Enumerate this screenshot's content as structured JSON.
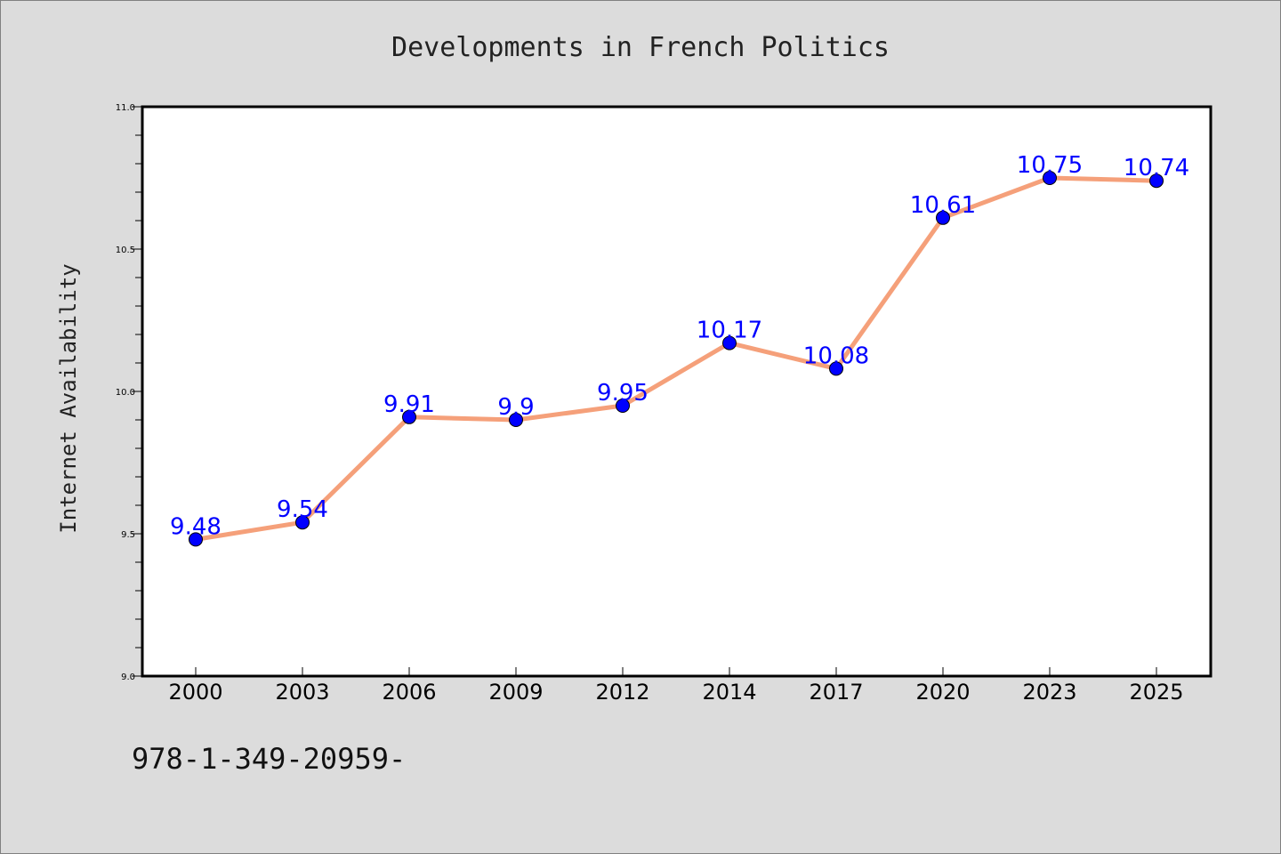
{
  "chart_data": {
    "type": "line",
    "title": "Developments in French Politics",
    "xlabel": "",
    "ylabel": "Internet Availability",
    "categories": [
      "2000",
      "2003",
      "2006",
      "2009",
      "2012",
      "2014",
      "2017",
      "2020",
      "2023",
      "2025"
    ],
    "values": [
      9.48,
      9.54,
      9.91,
      9.9,
      9.95,
      10.17,
      10.08,
      10.61,
      10.75,
      10.74
    ],
    "data_labels": [
      "9.48",
      "9.54",
      "9.91",
      "9.9",
      "9.95",
      "10.17",
      "10.08",
      "10.61",
      "10.75",
      "10.74"
    ],
    "ylim": [
      9.0,
      11.0
    ],
    "yticks": [
      "9.0",
      "9.5",
      "10.0",
      "10.5",
      "11.0"
    ],
    "ytick_values": [
      9.0,
      9.5,
      10.0,
      10.5,
      11.0
    ],
    "grid": false,
    "legend": "none",
    "colors": {
      "line": "#f5a07a",
      "marker": "#0000ff",
      "labels": "#0000ff",
      "background": "#dcdcdc",
      "plot_background": "#ffffff"
    }
  },
  "footnote": "978-1-349-20959-"
}
